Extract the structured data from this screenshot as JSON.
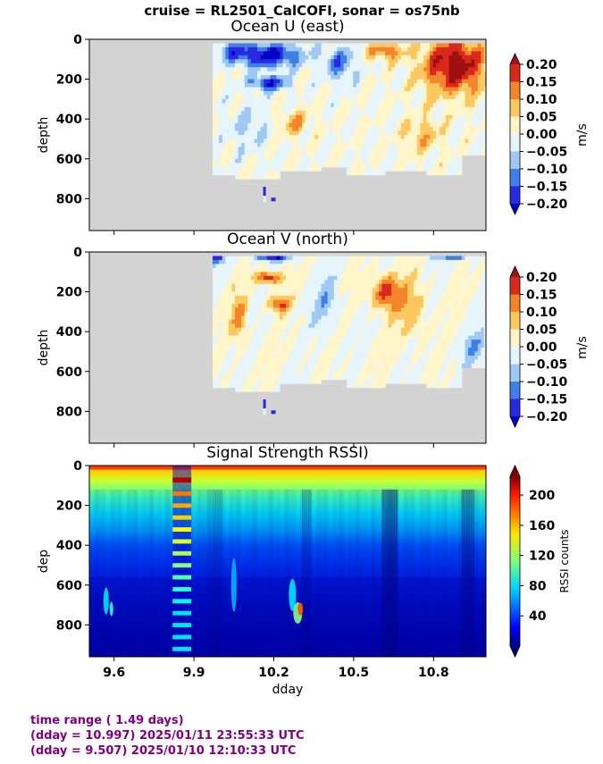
{
  "suptitle": "cruise = RL2501_CalCOFI,  sonar = os75nb",
  "chart_data": [
    {
      "type": "heatmap",
      "title": "Ocean U (east)",
      "xlabel": "",
      "ylabel": "depth",
      "xlim": [
        9.507,
        10.997
      ],
      "ylim": [
        960,
        0
      ],
      "yticks": [
        "0",
        "200",
        "400",
        "600",
        "800"
      ],
      "colorbar": {
        "label": "m/s",
        "range": [
          -0.2,
          0.2
        ],
        "ticks": [
          "0.20",
          "0.15",
          "0.10",
          "0.05",
          "0.00",
          "−0.05",
          "−0.10",
          "−0.15",
          "−0.20"
        ],
        "levels": [
          "#0000c8",
          "#2a28e0",
          "#3f7fe8",
          "#9fc8f5",
          "#e6f4fb",
          "#fff5c8",
          "#fdc860",
          "#f4852a",
          "#d9281c",
          "#a01010"
        ]
      },
      "missing_color": "#d3d3d3"
    },
    {
      "type": "heatmap",
      "title": "Ocean V (north)",
      "xlabel": "",
      "ylabel": "depth",
      "xlim": [
        9.507,
        10.997
      ],
      "ylim": [
        960,
        0
      ],
      "yticks": [
        "0",
        "200",
        "400",
        "600",
        "800"
      ],
      "colorbar": {
        "label": "m/s",
        "range": [
          -0.2,
          0.2
        ],
        "ticks": [
          "0.20",
          "0.15",
          "0.10",
          "0.05",
          "0.00",
          "−0.05",
          "−0.10",
          "−0.15",
          "−0.20"
        ]
      },
      "missing_color": "#d3d3d3"
    },
    {
      "type": "heatmap",
      "title": "Signal Strength RSSI)",
      "xlabel": "dday",
      "ylabel": "dep",
      "xlim": [
        9.507,
        10.997
      ],
      "ylim": [
        960,
        0
      ],
      "xticks": [
        "9.6",
        "9.9",
        "10.2",
        "10.5",
        "10.8"
      ],
      "yticks": [
        "0",
        "200",
        "400",
        "600",
        "800"
      ],
      "colorbar": {
        "label": "RSSI counts",
        "range": [
          0,
          225
        ],
        "ticks": [
          "200",
          "160",
          "120",
          "80",
          "40"
        ]
      }
    }
  ],
  "footer": {
    "line1": "time range ( 1.49 days)",
    "line2": "(dday = 10.997) 2025/01/11 23:55:33 UTC",
    "line3": "(dday = 9.507) 2025/01/10 12:10:33 UTC"
  }
}
